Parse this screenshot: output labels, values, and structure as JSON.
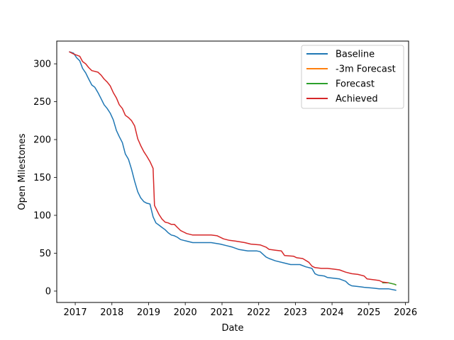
{
  "chart_data": {
    "type": "line",
    "title": "",
    "xlabel": "Date",
    "ylabel": "Open Milestones",
    "x_ticks": [
      "2017",
      "2018",
      "2019",
      "2020",
      "2021",
      "2022",
      "2023",
      "2024",
      "2025",
      "2026"
    ],
    "y_ticks": [
      "0",
      "50",
      "100",
      "150",
      "200",
      "250",
      "300"
    ],
    "xlim": [
      "2016-07-01",
      "2026-02-01"
    ],
    "ylim": [
      -15,
      330
    ],
    "legend_position": "top-right",
    "grid": false,
    "series": [
      {
        "name": "Baseline",
        "color": "#1f77b4",
        "points": [
          [
            "2016-11-01",
            316
          ],
          [
            "2016-12-15",
            314
          ],
          [
            "2017-01-15",
            308
          ],
          [
            "2017-02-15",
            304
          ],
          [
            "2017-03-15",
            294
          ],
          [
            "2017-04-15",
            288
          ],
          [
            "2017-05-15",
            280
          ],
          [
            "2017-06-15",
            272
          ],
          [
            "2017-07-15",
            269
          ],
          [
            "2017-08-15",
            262
          ],
          [
            "2017-09-15",
            254
          ],
          [
            "2017-10-15",
            246
          ],
          [
            "2017-11-15",
            241
          ],
          [
            "2017-12-15",
            235
          ],
          [
            "2018-01-15",
            226
          ],
          [
            "2018-02-15",
            212
          ],
          [
            "2018-03-15",
            204
          ],
          [
            "2018-04-15",
            196
          ],
          [
            "2018-05-15",
            181
          ],
          [
            "2018-06-15",
            174
          ],
          [
            "2018-07-15",
            161
          ],
          [
            "2018-08-15",
            145
          ],
          [
            "2018-09-15",
            131
          ],
          [
            "2018-10-15",
            123
          ],
          [
            "2018-11-15",
            118
          ],
          [
            "2018-12-15",
            116
          ],
          [
            "2019-01-15",
            115
          ],
          [
            "2019-02-15",
            98
          ],
          [
            "2019-03-15",
            90
          ],
          [
            "2019-04-15",
            87
          ],
          [
            "2019-05-15",
            84
          ],
          [
            "2019-06-15",
            81
          ],
          [
            "2019-07-15",
            77
          ],
          [
            "2019-08-15",
            74
          ],
          [
            "2019-09-15",
            73
          ],
          [
            "2019-10-15",
            71
          ],
          [
            "2019-11-15",
            68
          ],
          [
            "2019-12-15",
            67
          ],
          [
            "2020-01-15",
            66
          ],
          [
            "2020-03-15",
            64
          ],
          [
            "2020-06-15",
            64
          ],
          [
            "2020-09-15",
            64
          ],
          [
            "2020-12-15",
            62
          ],
          [
            "2021-02-15",
            60
          ],
          [
            "2021-04-15",
            58
          ],
          [
            "2021-06-15",
            55
          ],
          [
            "2021-09-15",
            53
          ],
          [
            "2021-12-15",
            53
          ],
          [
            "2022-01-15",
            52
          ],
          [
            "2022-03-15",
            45
          ],
          [
            "2022-04-15",
            43
          ],
          [
            "2022-06-15",
            40
          ],
          [
            "2022-09-15",
            37
          ],
          [
            "2022-11-15",
            35
          ],
          [
            "2023-02-15",
            35
          ],
          [
            "2023-04-15",
            32
          ],
          [
            "2023-06-15",
            30
          ],
          [
            "2023-07-15",
            23
          ],
          [
            "2023-08-15",
            21
          ],
          [
            "2023-10-15",
            20
          ],
          [
            "2023-11-15",
            18
          ],
          [
            "2024-01-15",
            17
          ],
          [
            "2024-03-15",
            16
          ],
          [
            "2024-05-15",
            13
          ],
          [
            "2024-06-15",
            9
          ],
          [
            "2024-07-15",
            7
          ],
          [
            "2024-09-15",
            6
          ],
          [
            "2024-11-15",
            5
          ],
          [
            "2025-02-15",
            4
          ],
          [
            "2025-04-15",
            3
          ],
          [
            "2025-07-15",
            3
          ],
          [
            "2025-10-01",
            1
          ]
        ]
      },
      {
        "name": "-3m Forecast",
        "color": "#ff7f0e",
        "points": [
          [
            "2025-05-15",
            11
          ],
          [
            "2025-07-15",
            11
          ],
          [
            "2025-09-15",
            9
          ],
          [
            "2025-10-01",
            8
          ]
        ]
      },
      {
        "name": "Forecast",
        "color": "#2ca02c",
        "points": [
          [
            "2025-05-15",
            11
          ],
          [
            "2025-07-15",
            11
          ],
          [
            "2025-09-15",
            9
          ],
          [
            "2025-10-01",
            8
          ]
        ]
      },
      {
        "name": "Achieved",
        "color": "#d62728",
        "points": [
          [
            "2016-11-01",
            316
          ],
          [
            "2016-12-15",
            313
          ],
          [
            "2017-02-15",
            310
          ],
          [
            "2017-03-15",
            303
          ],
          [
            "2017-04-15",
            300
          ],
          [
            "2017-05-15",
            295
          ],
          [
            "2017-06-15",
            291
          ],
          [
            "2017-08-15",
            289
          ],
          [
            "2017-09-15",
            285
          ],
          [
            "2017-10-15",
            280
          ],
          [
            "2017-11-15",
            276
          ],
          [
            "2017-12-15",
            271
          ],
          [
            "2018-01-15",
            262
          ],
          [
            "2018-02-15",
            255
          ],
          [
            "2018-03-15",
            246
          ],
          [
            "2018-04-15",
            241
          ],
          [
            "2018-05-15",
            232
          ],
          [
            "2018-06-15",
            229
          ],
          [
            "2018-07-15",
            225
          ],
          [
            "2018-08-15",
            218
          ],
          [
            "2018-09-15",
            201
          ],
          [
            "2018-10-15",
            192
          ],
          [
            "2018-11-15",
            184
          ],
          [
            "2018-12-15",
            178
          ],
          [
            "2019-01-15",
            171
          ],
          [
            "2019-02-15",
            162
          ],
          [
            "2019-03-01",
            113
          ],
          [
            "2019-04-15",
            101
          ],
          [
            "2019-05-15",
            95
          ],
          [
            "2019-06-15",
            91
          ],
          [
            "2019-07-15",
            90
          ],
          [
            "2019-08-15",
            88
          ],
          [
            "2019-09-15",
            88
          ],
          [
            "2019-10-15",
            84
          ],
          [
            "2019-11-15",
            80
          ],
          [
            "2019-12-15",
            78
          ],
          [
            "2020-01-15",
            76
          ],
          [
            "2020-03-15",
            74
          ],
          [
            "2020-06-15",
            74
          ],
          [
            "2020-09-15",
            74
          ],
          [
            "2020-11-15",
            73
          ],
          [
            "2021-01-15",
            69
          ],
          [
            "2021-03-15",
            67
          ],
          [
            "2021-05-15",
            66
          ],
          [
            "2021-08-15",
            64
          ],
          [
            "2021-10-15",
            62
          ],
          [
            "2022-01-15",
            61
          ],
          [
            "2022-03-15",
            58
          ],
          [
            "2022-04-15",
            55
          ],
          [
            "2022-06-15",
            54
          ],
          [
            "2022-08-15",
            53
          ],
          [
            "2022-09-15",
            47
          ],
          [
            "2022-12-15",
            46
          ],
          [
            "2023-01-15",
            44
          ],
          [
            "2023-03-15",
            43
          ],
          [
            "2023-05-15",
            38
          ],
          [
            "2023-06-15",
            33
          ],
          [
            "2023-07-15",
            31
          ],
          [
            "2023-09-15",
            30
          ],
          [
            "2023-11-15",
            30
          ],
          [
            "2024-01-15",
            29
          ],
          [
            "2024-03-15",
            28
          ],
          [
            "2024-05-15",
            25
          ],
          [
            "2024-07-15",
            23
          ],
          [
            "2024-09-15",
            22
          ],
          [
            "2024-11-15",
            20
          ],
          [
            "2024-12-15",
            16
          ],
          [
            "2025-02-15",
            15
          ],
          [
            "2025-04-15",
            14
          ],
          [
            "2025-05-15",
            12
          ],
          [
            "2025-07-15",
            11
          ]
        ]
      }
    ]
  }
}
